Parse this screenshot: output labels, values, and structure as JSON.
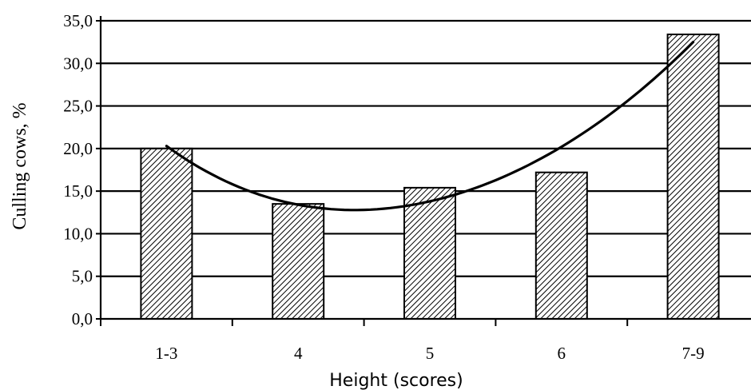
{
  "chart_data": {
    "type": "bar",
    "title": "",
    "xlabel": "Height (scores)",
    "ylabel": "Culling cows, %",
    "categories": [
      "1-3",
      "4",
      "5",
      "6",
      "7-9"
    ],
    "values": [
      20.0,
      13.5,
      15.4,
      17.2,
      33.4
    ],
    "ylim": [
      0,
      35
    ],
    "yticks": [
      "0,0",
      "5,0",
      "10,0",
      "15,0",
      "20,0",
      "25,0",
      "30,0",
      "35,0"
    ],
    "grid": true,
    "bar_fill": "diagonal-hatch",
    "trendline": {
      "type": "polynomial",
      "points": [
        {
          "x": "1-3",
          "y": 20.3
        },
        {
          "x": "4",
          "y": 13.4
        },
        {
          "x": "5",
          "y": 13.8
        },
        {
          "x": "6",
          "y": 20.2
        },
        {
          "x": "7-9",
          "y": 32.5
        }
      ]
    },
    "colors": {
      "bar_stroke": "#000000",
      "hatch": "#000000",
      "grid": "#000000",
      "line": "#000000"
    }
  }
}
